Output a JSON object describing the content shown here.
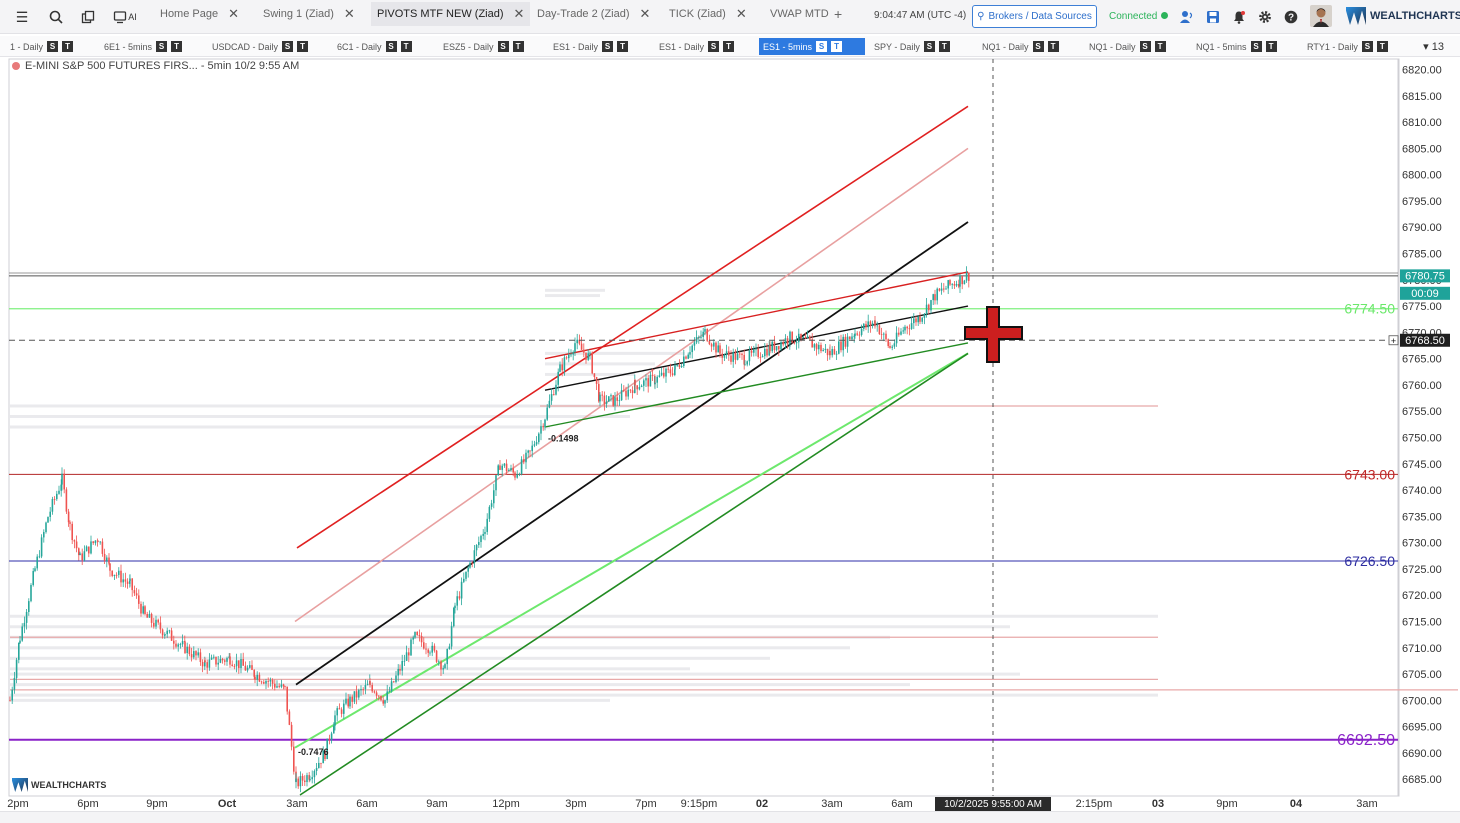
{
  "topbar": {
    "icons": [
      "menu-icon",
      "search-icon",
      "copy-icon",
      "ai-icon"
    ],
    "ai_label": "AI",
    "tabs": [
      {
        "label": "Home Page",
        "active": false
      },
      {
        "label": "Swing 1 (Ziad)",
        "active": false
      },
      {
        "label": "PIVOTS MTF NEW (Ziad)",
        "active": true
      },
      {
        "label": "Day-Trade 2 (Ziad)",
        "active": false
      },
      {
        "label": "TICK (Ziad)",
        "active": false
      },
      {
        "label": "VWAP MTD",
        "active": false
      }
    ],
    "add_tab": "+",
    "clock": "9:04:47 AM  (UTC -4)",
    "brokers_label": "Brokers / Data Sources",
    "connected_label": "Connected",
    "brand": "WEALTHCHARTS"
  },
  "symbols": [
    {
      "label": "1 - Daily",
      "active": false
    },
    {
      "label": "6E1 - 5mins",
      "active": false
    },
    {
      "label": "USDCAD - Daily",
      "active": false
    },
    {
      "label": "6C1 - Daily",
      "active": false
    },
    {
      "label": "ESZ5 - Daily",
      "active": false
    },
    {
      "label": "ES1 - Daily",
      "active": false
    },
    {
      "label": "ES1 - Daily",
      "active": false
    },
    {
      "label": "ES1 - 5mins",
      "active": true
    },
    {
      "label": "SPY - Daily",
      "active": false
    },
    {
      "label": "NQ1 - Daily",
      "active": false
    },
    {
      "label": "NQ1 - Daily",
      "active": false
    },
    {
      "label": "NQ1 - 5mins",
      "active": false
    },
    {
      "label": "RTY1 - Daily",
      "active": false
    }
  ],
  "symbol_badge_s": "S",
  "symbol_badge_t": "T",
  "symbol_count": "▾ 13",
  "chart": {
    "title": "E-MINI S&P 500 FUTURES FIRS...  - 5min  10/2 9:55 AM",
    "watermark": "WEALTHCHARTS",
    "y_ticks": [
      "6820.00",
      "6815.00",
      "6810.00",
      "6805.00",
      "6800.00",
      "6795.00",
      "6790.00",
      "6785.00",
      "6780.00",
      "6775.00",
      "6770.00",
      "6765.00",
      "6760.00",
      "6755.00",
      "6750.00",
      "6745.00",
      "6740.00",
      "6735.00",
      "6730.00",
      "6725.00",
      "6720.00",
      "6715.00",
      "6710.00",
      "6705.00",
      "6700.00",
      "6695.00",
      "6690.00",
      "6685.00"
    ],
    "x_ticks": [
      "2pm",
      "6pm",
      "9pm",
      "Oct",
      "3am",
      "6am",
      "9am",
      "12pm",
      "3pm",
      "7pm",
      "9:15pm",
      "02",
      "3am",
      "6am",
      "2:15pm",
      "03",
      "9pm",
      "04",
      "3am"
    ],
    "crosshair_time": "10/2/2025 9:55:00 AM",
    "last_price": "6780.75",
    "countdown": "00:09",
    "cursor_price": "6768.50",
    "levels": [
      {
        "label": "6774.50",
        "color": "#6be86b"
      },
      {
        "label": "6743.00",
        "color": "#c02828"
      },
      {
        "label": "6726.50",
        "color": "#2c2ca0"
      },
      {
        "label": "6692.50",
        "color": "#8a22c8"
      }
    ],
    "annotations": [
      "-0.1498",
      "-0.7476"
    ]
  },
  "chart_data": {
    "type": "candlestick",
    "title": "E-MINI S&P 500 FUTURES FIRS...  - 5min  10/2 9:55 AM",
    "ylim": [
      6682,
      6822
    ],
    "grid": false,
    "series": [
      {
        "name": "",
        "values": [
          6700,
          6722,
          6742,
          6728,
          6718,
          6712,
          6708,
          6704,
          6700,
          6684,
          6696,
          6704,
          6710,
          6708,
          6706,
          6742,
          6754,
          6770,
          6757,
          6762,
          6770,
          6766,
          6770,
          6768,
          6774,
          6766,
          6772,
          6780.75
        ]
      }
    ],
    "horizontal_levels": [
      6774.5,
      6743.0,
      6726.5,
      6692.5,
      6756
    ]
  }
}
